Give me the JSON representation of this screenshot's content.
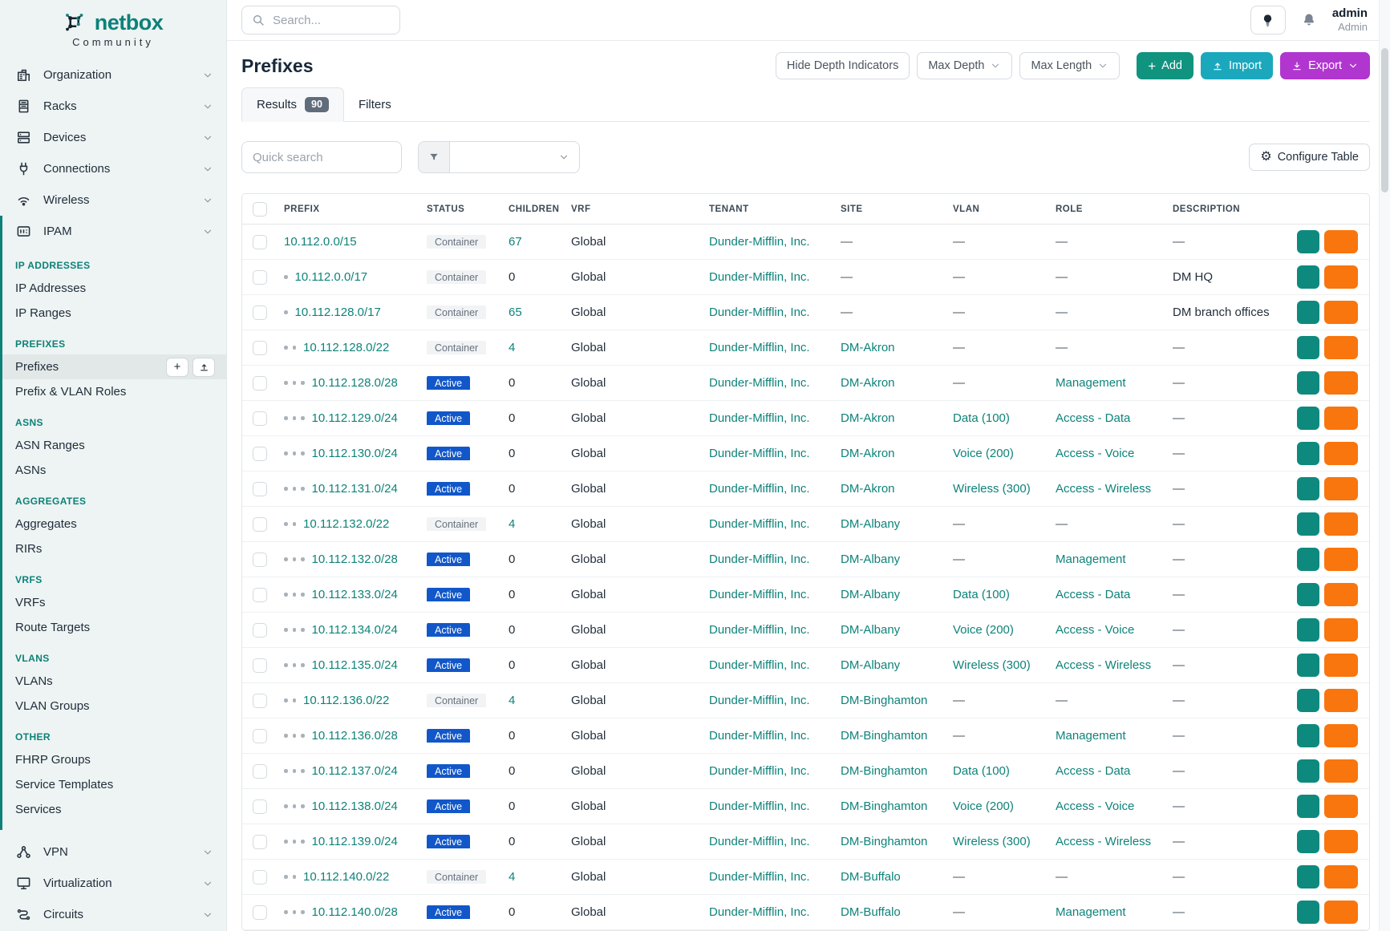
{
  "colors": {
    "brand_teal": "#0c8179",
    "link_teal": "#0e837a",
    "active_badge": "#1157c9",
    "container_badge_bg": "#f1f3f5",
    "container_badge_text": "#68727f",
    "add_button": "#109480",
    "import_button": "#1ba8bd",
    "export_button": "#b136cf",
    "edit_button": "#f9750d",
    "copy_button": "#0d8a7d",
    "sidebar_bg": "#eef4f3",
    "sidebar_active_bg": "#e2e8e7"
  },
  "brand": {
    "name": "netbox",
    "subtitle": "Community"
  },
  "topbar": {
    "search_placeholder": "Search...",
    "user": {
      "name": "admin",
      "role": "Admin"
    }
  },
  "sidebar": {
    "top_items": [
      {
        "label": "Organization",
        "icon": "organization"
      },
      {
        "label": "Racks",
        "icon": "racks"
      },
      {
        "label": "Devices",
        "icon": "devices"
      },
      {
        "label": "Connections",
        "icon": "connections"
      },
      {
        "label": "Wireless",
        "icon": "wireless"
      }
    ],
    "ipam": {
      "label": "IPAM",
      "icon": "ipam",
      "sections": [
        {
          "title": "IP ADDRESSES",
          "items": [
            "IP Addresses",
            "IP Ranges"
          ]
        },
        {
          "title": "PREFIXES",
          "items": [
            "Prefixes",
            "Prefix & VLAN Roles"
          ],
          "active_item": "Prefixes"
        },
        {
          "title": "ASNS",
          "items": [
            "ASN Ranges",
            "ASNs"
          ]
        },
        {
          "title": "AGGREGATES",
          "items": [
            "Aggregates",
            "RIRs"
          ]
        },
        {
          "title": "VRFS",
          "items": [
            "VRFs",
            "Route Targets"
          ]
        },
        {
          "title": "VLANS",
          "items": [
            "VLANs",
            "VLAN Groups"
          ]
        },
        {
          "title": "OTHER",
          "items": [
            "FHRP Groups",
            "Service Templates",
            "Services"
          ]
        }
      ]
    },
    "bottom_items": [
      {
        "label": "VPN",
        "icon": "vpn"
      },
      {
        "label": "Virtualization",
        "icon": "virtualization"
      },
      {
        "label": "Circuits",
        "icon": "circuits"
      }
    ]
  },
  "page": {
    "title": "Prefixes",
    "toolbar": {
      "hide_depth": "Hide Depth Indicators",
      "max_depth": "Max Depth",
      "max_length": "Max Length",
      "add": "Add",
      "import": "Import",
      "export": "Export"
    },
    "tabs": [
      {
        "label": "Results",
        "badge": "90"
      },
      {
        "label": "Filters"
      }
    ],
    "quick_search_placeholder": "Quick search",
    "configure_table": "Configure Table"
  },
  "table": {
    "columns": [
      "Prefix",
      "Status",
      "Children",
      "VRF",
      "Tenant",
      "Site",
      "VLAN",
      "Role",
      "Description"
    ],
    "rows": [
      {
        "prefix": "10.112.0.0/15",
        "depth": 0,
        "status": "Container",
        "children": "67",
        "vrf": "Global",
        "tenant": "Dunder-Mifflin, Inc.",
        "site": "—",
        "vlan": "—",
        "role": "—",
        "description": "—"
      },
      {
        "prefix": "10.112.0.0/17",
        "depth": 1,
        "status": "Container",
        "children": "0",
        "vrf": "Global",
        "tenant": "Dunder-Mifflin, Inc.",
        "site": "—",
        "vlan": "—",
        "role": "—",
        "description": "DM HQ"
      },
      {
        "prefix": "10.112.128.0/17",
        "depth": 1,
        "status": "Container",
        "children": "65",
        "vrf": "Global",
        "tenant": "Dunder-Mifflin, Inc.",
        "site": "—",
        "vlan": "—",
        "role": "—",
        "description": "DM branch offices"
      },
      {
        "prefix": "10.112.128.0/22",
        "depth": 2,
        "status": "Container",
        "children": "4",
        "vrf": "Global",
        "tenant": "Dunder-Mifflin, Inc.",
        "site": "DM-Akron",
        "vlan": "—",
        "role": "—",
        "description": "—"
      },
      {
        "prefix": "10.112.128.0/28",
        "depth": 3,
        "status": "Active",
        "children": "0",
        "vrf": "Global",
        "tenant": "Dunder-Mifflin, Inc.",
        "site": "DM-Akron",
        "vlan": "—",
        "role": "Management",
        "description": "—"
      },
      {
        "prefix": "10.112.129.0/24",
        "depth": 3,
        "status": "Active",
        "children": "0",
        "vrf": "Global",
        "tenant": "Dunder-Mifflin, Inc.",
        "site": "DM-Akron",
        "vlan": "Data (100)",
        "role": "Access - Data",
        "description": "—"
      },
      {
        "prefix": "10.112.130.0/24",
        "depth": 3,
        "status": "Active",
        "children": "0",
        "vrf": "Global",
        "tenant": "Dunder-Mifflin, Inc.",
        "site": "DM-Akron",
        "vlan": "Voice (200)",
        "role": "Access - Voice",
        "description": "—"
      },
      {
        "prefix": "10.112.131.0/24",
        "depth": 3,
        "status": "Active",
        "children": "0",
        "vrf": "Global",
        "tenant": "Dunder-Mifflin, Inc.",
        "site": "DM-Akron",
        "vlan": "Wireless (300)",
        "role": "Access - Wireless",
        "description": "—"
      },
      {
        "prefix": "10.112.132.0/22",
        "depth": 2,
        "status": "Container",
        "children": "4",
        "vrf": "Global",
        "tenant": "Dunder-Mifflin, Inc.",
        "site": "DM-Albany",
        "vlan": "—",
        "role": "—",
        "description": "—"
      },
      {
        "prefix": "10.112.132.0/28",
        "depth": 3,
        "status": "Active",
        "children": "0",
        "vrf": "Global",
        "tenant": "Dunder-Mifflin, Inc.",
        "site": "DM-Albany",
        "vlan": "—",
        "role": "Management",
        "description": "—"
      },
      {
        "prefix": "10.112.133.0/24",
        "depth": 3,
        "status": "Active",
        "children": "0",
        "vrf": "Global",
        "tenant": "Dunder-Mifflin, Inc.",
        "site": "DM-Albany",
        "vlan": "Data (100)",
        "role": "Access - Data",
        "description": "—"
      },
      {
        "prefix": "10.112.134.0/24",
        "depth": 3,
        "status": "Active",
        "children": "0",
        "vrf": "Global",
        "tenant": "Dunder-Mifflin, Inc.",
        "site": "DM-Albany",
        "vlan": "Voice (200)",
        "role": "Access - Voice",
        "description": "—"
      },
      {
        "prefix": "10.112.135.0/24",
        "depth": 3,
        "status": "Active",
        "children": "0",
        "vrf": "Global",
        "tenant": "Dunder-Mifflin, Inc.",
        "site": "DM-Albany",
        "vlan": "Wireless (300)",
        "role": "Access - Wireless",
        "description": "—"
      },
      {
        "prefix": "10.112.136.0/22",
        "depth": 2,
        "status": "Container",
        "children": "4",
        "vrf": "Global",
        "tenant": "Dunder-Mifflin, Inc.",
        "site": "DM-Binghamton",
        "vlan": "—",
        "role": "—",
        "description": "—"
      },
      {
        "prefix": "10.112.136.0/28",
        "depth": 3,
        "status": "Active",
        "children": "0",
        "vrf": "Global",
        "tenant": "Dunder-Mifflin, Inc.",
        "site": "DM-Binghamton",
        "vlan": "—",
        "role": "Management",
        "description": "—"
      },
      {
        "prefix": "10.112.137.0/24",
        "depth": 3,
        "status": "Active",
        "children": "0",
        "vrf": "Global",
        "tenant": "Dunder-Mifflin, Inc.",
        "site": "DM-Binghamton",
        "vlan": "Data (100)",
        "role": "Access - Data",
        "description": "—"
      },
      {
        "prefix": "10.112.138.0/24",
        "depth": 3,
        "status": "Active",
        "children": "0",
        "vrf": "Global",
        "tenant": "Dunder-Mifflin, Inc.",
        "site": "DM-Binghamton",
        "vlan": "Voice (200)",
        "role": "Access - Voice",
        "description": "—"
      },
      {
        "prefix": "10.112.139.0/24",
        "depth": 3,
        "status": "Active",
        "children": "0",
        "vrf": "Global",
        "tenant": "Dunder-Mifflin, Inc.",
        "site": "DM-Binghamton",
        "vlan": "Wireless (300)",
        "role": "Access - Wireless",
        "description": "—"
      },
      {
        "prefix": "10.112.140.0/22",
        "depth": 2,
        "status": "Container",
        "children": "4",
        "vrf": "Global",
        "tenant": "Dunder-Mifflin, Inc.",
        "site": "DM-Buffalo",
        "vlan": "—",
        "role": "—",
        "description": "—"
      },
      {
        "prefix": "10.112.140.0/28",
        "depth": 3,
        "status": "Active",
        "children": "0",
        "vrf": "Global",
        "tenant": "Dunder-Mifflin, Inc.",
        "site": "DM-Buffalo",
        "vlan": "—",
        "role": "Management",
        "description": "—"
      }
    ]
  }
}
